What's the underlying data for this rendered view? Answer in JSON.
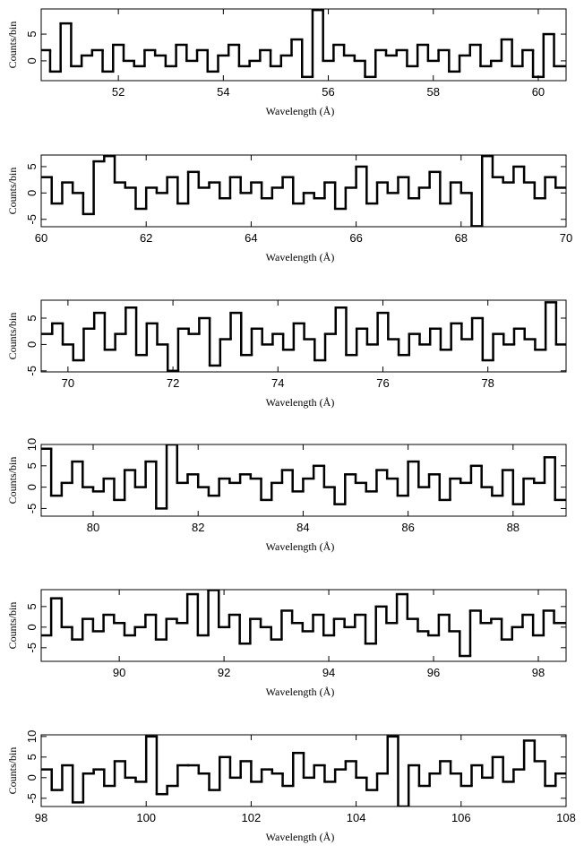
{
  "chart_data": [
    {
      "type": "step",
      "xlabel": "Wavelength (Å)",
      "ylabel": "Counts/bin",
      "color": "#000000",
      "xlim": [
        50.53,
        60.53
      ],
      "ylim": [
        -3.7,
        9.7
      ],
      "xticks": [
        52,
        54,
        56,
        58,
        60
      ],
      "yticks": [
        0,
        5
      ],
      "x": [
        50.6,
        50.8,
        51,
        51.2,
        51.4,
        51.6,
        51.8,
        52,
        52.2,
        52.4,
        52.6,
        52.8,
        53,
        53.2,
        53.4,
        53.6,
        53.8,
        54,
        54.2,
        54.4,
        54.6,
        54.8,
        55,
        55.2,
        55.4,
        55.6,
        55.8,
        56,
        56.2,
        56.4,
        56.6,
        56.8,
        57,
        57.2,
        57.4,
        57.6,
        57.8,
        58,
        58.2,
        58.4,
        58.6,
        58.8,
        59,
        59.2,
        59.4,
        59.6,
        59.8,
        60,
        60.2,
        60.4
      ],
      "values": [
        2,
        -2,
        7,
        -1,
        1,
        2,
        -2,
        3,
        0,
        -1,
        2,
        1,
        -1,
        3,
        0,
        2,
        -2,
        1,
        3,
        -1,
        0,
        2,
        -1,
        1,
        4,
        -3,
        9.5,
        0,
        3,
        1,
        0,
        -3,
        2,
        1,
        2,
        -1,
        3,
        0,
        2,
        -2,
        1,
        3,
        -1,
        0,
        4,
        -1,
        2,
        -3,
        5,
        -1
      ]
    },
    {
      "type": "step",
      "xlabel": "Wavelength (Å)",
      "ylabel": "Counts/bin",
      "color": "#000000",
      "xlim": [
        60,
        70
      ],
      "ylim": [
        -6.4,
        7.2
      ],
      "xticks": [
        60,
        62,
        64,
        66,
        68,
        70
      ],
      "yticks": [
        -5,
        0,
        5
      ],
      "x": [
        60.1,
        60.3,
        60.5,
        60.7,
        60.9,
        61.1,
        61.3,
        61.5,
        61.7,
        61.9,
        62.1,
        62.3,
        62.5,
        62.7,
        62.9,
        63.1,
        63.3,
        63.5,
        63.7,
        63.9,
        64.1,
        64.3,
        64.5,
        64.7,
        64.9,
        65.1,
        65.3,
        65.5,
        65.7,
        65.9,
        66.1,
        66.3,
        66.5,
        66.7,
        66.9,
        67.1,
        67.3,
        67.5,
        67.7,
        67.9,
        68.1,
        68.3,
        68.5,
        68.7,
        68.9,
        69.1,
        69.3,
        69.5,
        69.7,
        69.9
      ],
      "values": [
        3,
        -2,
        2,
        0,
        -4,
        6,
        7,
        2,
        1,
        -3,
        1,
        0,
        3,
        -2,
        4,
        1,
        2,
        -1,
        3,
        0,
        2,
        -1,
        1,
        3,
        -2,
        0,
        -1,
        2,
        -3,
        1,
        5,
        -2,
        2,
        0,
        3,
        -1,
        1,
        4,
        -2,
        2,
        0,
        -6.3,
        7,
        3,
        2,
        5,
        2,
        -1,
        3,
        1
      ]
    },
    {
      "type": "step",
      "xlabel": "Wavelength (Å)",
      "ylabel": "Counts/bin",
      "color": "#000000",
      "xlim": [
        69.49,
        79.49
      ],
      "ylim": [
        -5.2,
        8.4
      ],
      "xticks": [
        70,
        72,
        74,
        76,
        78
      ],
      "yticks": [
        -5,
        0,
        5
      ],
      "x": [
        69.6,
        69.8,
        70,
        70.2,
        70.4,
        70.6,
        70.8,
        71,
        71.2,
        71.4,
        71.6,
        71.8,
        72,
        72.2,
        72.4,
        72.6,
        72.8,
        73,
        73.2,
        73.4,
        73.6,
        73.8,
        74,
        74.2,
        74.4,
        74.6,
        74.8,
        75,
        75.2,
        75.4,
        75.6,
        75.8,
        76,
        76.2,
        76.4,
        76.6,
        76.8,
        77,
        77.2,
        77.4,
        77.6,
        77.8,
        78,
        78.2,
        78.4,
        78.6,
        78.8,
        79,
        79.2,
        79.4
      ],
      "values": [
        2,
        4,
        0,
        -3,
        3,
        6,
        -1,
        2,
        7,
        -2,
        4,
        0,
        -5,
        3,
        2,
        5,
        -4,
        1,
        6,
        -2,
        3,
        0,
        2,
        -1,
        4,
        1,
        -3,
        2,
        7,
        -2,
        3,
        0,
        6,
        1,
        -2,
        2,
        0,
        3,
        -1,
        4,
        1,
        5,
        -3,
        2,
        0,
        3,
        1,
        -1,
        8,
        0
      ]
    },
    {
      "type": "step",
      "xlabel": "Wavelength (Å)",
      "ylabel": "Counts/bin",
      "color": "#000000",
      "xlim": [
        79.01,
        89.01
      ],
      "ylim": [
        -6.8,
        10
      ],
      "xticks": [
        80,
        82,
        84,
        86,
        88
      ],
      "yticks": [
        -5,
        0,
        5,
        10
      ],
      "x": [
        79.1,
        79.3,
        79.5,
        79.7,
        79.9,
        80.1,
        80.3,
        80.5,
        80.7,
        80.9,
        81.1,
        81.3,
        81.5,
        81.7,
        81.9,
        82.1,
        82.3,
        82.5,
        82.7,
        82.9,
        83.1,
        83.3,
        83.5,
        83.7,
        83.9,
        84.1,
        84.3,
        84.5,
        84.7,
        84.9,
        85.1,
        85.3,
        85.5,
        85.7,
        85.9,
        86.1,
        86.3,
        86.5,
        86.7,
        86.9,
        87.1,
        87.3,
        87.5,
        87.7,
        87.9,
        88.1,
        88.3,
        88.5,
        88.7,
        88.9
      ],
      "values": [
        9,
        -2,
        1,
        6,
        0,
        -1,
        2,
        -3,
        4,
        0,
        6,
        -5,
        10,
        1,
        3,
        0,
        -2,
        2,
        1,
        3,
        2,
        -3,
        1,
        4,
        -1,
        2,
        5,
        0,
        -4,
        3,
        1,
        -1,
        4,
        2,
        -2,
        6,
        0,
        3,
        -3,
        2,
        1,
        5,
        0,
        -2,
        4,
        -4,
        2,
        1,
        7,
        -3
      ]
    },
    {
      "type": "step",
      "xlabel": "Wavelength (Å)",
      "ylabel": "Counts/bin",
      "color": "#000000",
      "xlim": [
        88.51,
        98.53
      ],
      "ylim": [
        -8.3,
        9.1
      ],
      "xticks": [
        90,
        92,
        94,
        96,
        98
      ],
      "yticks": [
        -5,
        0,
        5
      ],
      "x": [
        88.6,
        88.8,
        89,
        89.2,
        89.4,
        89.6,
        89.8,
        90,
        90.2,
        90.4,
        90.6,
        90.8,
        91,
        91.2,
        91.4,
        91.6,
        91.8,
        92,
        92.2,
        92.4,
        92.6,
        92.8,
        93,
        93.2,
        93.4,
        93.6,
        93.8,
        94,
        94.2,
        94.4,
        94.6,
        94.8,
        95,
        95.2,
        95.4,
        95.6,
        95.8,
        96,
        96.2,
        96.4,
        96.6,
        96.8,
        97,
        97.2,
        97.4,
        97.6,
        97.8,
        98,
        98.2,
        98.4
      ],
      "values": [
        -2,
        7,
        0,
        -3,
        2,
        -1,
        3,
        1,
        -2,
        0,
        3,
        -3,
        2,
        1,
        8,
        -2,
        9,
        0,
        3,
        -4,
        2,
        0,
        -3,
        4,
        1,
        -1,
        3,
        -2,
        2,
        0,
        3,
        -4,
        5,
        1,
        8,
        2,
        -1,
        -2,
        3,
        -1,
        -7,
        4,
        1,
        2,
        -3,
        0,
        3,
        -2,
        4,
        1
      ]
    },
    {
      "type": "step",
      "xlabel": "Wavelength (Å)",
      "ylabel": "Counts/bin",
      "color": "#000000",
      "xlim": [
        98,
        108
      ],
      "ylim": [
        -7,
        10.4
      ],
      "xticks": [
        98,
        100,
        102,
        104,
        106,
        108
      ],
      "yticks": [
        -5,
        0,
        5,
        10
      ],
      "x": [
        98.1,
        98.3,
        98.5,
        98.7,
        98.9,
        99.1,
        99.3,
        99.5,
        99.7,
        99.9,
        100.1,
        100.3,
        100.5,
        100.7,
        100.9,
        101.1,
        101.3,
        101.5,
        101.7,
        101.9,
        102.1,
        102.3,
        102.5,
        102.7,
        102.9,
        103.1,
        103.3,
        103.5,
        103.7,
        103.9,
        104.1,
        104.3,
        104.5,
        104.7,
        104.9,
        105.1,
        105.3,
        105.5,
        105.7,
        105.9,
        106.1,
        106.3,
        106.5,
        106.7,
        106.9,
        107.1,
        107.3,
        107.5,
        107.7,
        107.9
      ],
      "values": [
        2,
        -3,
        3,
        -6,
        1,
        2,
        -2,
        4,
        0,
        -1,
        10,
        -4,
        -2,
        3,
        3,
        1,
        -3,
        5,
        0,
        4,
        -1,
        2,
        1,
        -2,
        6,
        0,
        3,
        -1,
        2,
        4,
        0,
        -3,
        1,
        10,
        -7,
        3,
        -2,
        1,
        4,
        1,
        -2,
        3,
        0,
        5,
        -1,
        2,
        9,
        4,
        -2,
        1
      ]
    }
  ]
}
